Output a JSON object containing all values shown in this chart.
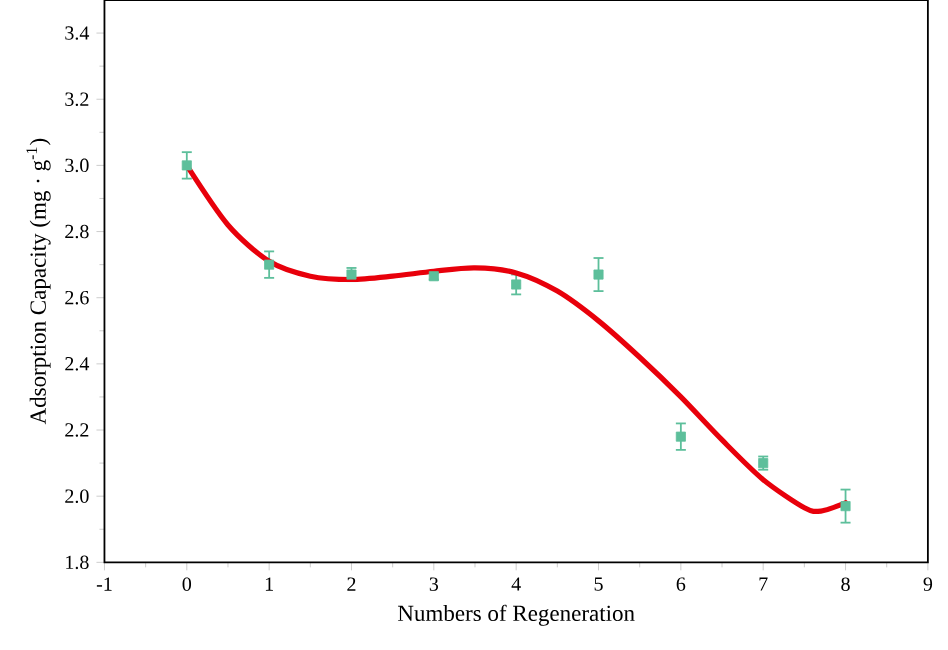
{
  "chart_data": {
    "type": "scatter",
    "xlabel": "Numbers of Regeneration",
    "ylabel": "Adsorption Capacity (mg · g$^{-1}$)",
    "xlim": [
      -1,
      9
    ],
    "xticks": [
      -1,
      0,
      1,
      2,
      3,
      4,
      5,
      6,
      7,
      8,
      9
    ],
    "ylim": [
      1.8,
      3.5
    ],
    "yticks": [
      1.8,
      {
        "value": 2,
        "label": "2.0"
      },
      2.2,
      2.4,
      2.6,
      2.8,
      {
        "value": 3,
        "label": "3.0"
      },
      3.2,
      3.4
    ],
    "grid": false,
    "series": [
      {
        "marker": "square",
        "color": "#5dbf9b",
        "x": [
          0,
          1,
          2,
          3,
          4,
          5,
          6,
          7,
          8
        ],
        "values": [
          3.0,
          2.7,
          2.67,
          2.665,
          2.64,
          2.67,
          2.18,
          2.1,
          1.97
        ],
        "errors": [
          0.04,
          0.04,
          0.02,
          0.01,
          0.03,
          0.05,
          0.04,
          0.02,
          0.05
        ]
      },
      {
        "type": "line",
        "color": "#e8000b",
        "x": [
          0,
          0.5,
          1,
          1.5,
          2,
          2.5,
          3,
          3.5,
          4,
          4.5,
          5,
          5.5,
          6,
          6.5,
          7,
          7.5,
          7.7,
          8
        ],
        "values": [
          3.0,
          2.82,
          2.71,
          2.665,
          2.655,
          2.665,
          2.68,
          2.69,
          2.675,
          2.62,
          2.53,
          2.42,
          2.3,
          2.17,
          2.05,
          1.965,
          1.955,
          1.98
        ]
      }
    ]
  }
}
